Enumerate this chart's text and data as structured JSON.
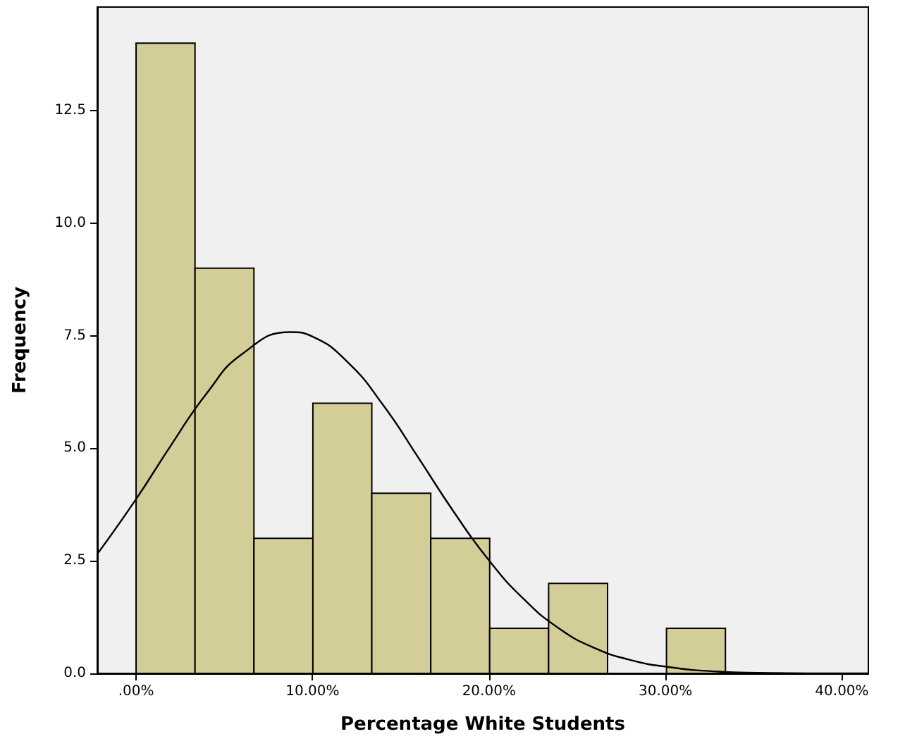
{
  "chart_data": {
    "type": "histogram",
    "xlabel": "Percentage White Students",
    "ylabel": "Frequency",
    "xlim": [
      -2.2,
      41.5
    ],
    "ylim": [
      0,
      14.8
    ],
    "xticks": [
      {
        "value": 0,
        "label": ".00%"
      },
      {
        "value": 10,
        "label": "10.00%"
      },
      {
        "value": 20,
        "label": "20.00%"
      },
      {
        "value": 30,
        "label": "30.00%"
      },
      {
        "value": 40,
        "label": "40.00%"
      }
    ],
    "yticks": [
      {
        "value": 0,
        "label": "0.0"
      },
      {
        "value": 2.5,
        "label": "2.5"
      },
      {
        "value": 5,
        "label": "5.0"
      },
      {
        "value": 7.5,
        "label": "7.5"
      },
      {
        "value": 10,
        "label": "10.0"
      },
      {
        "value": 12.5,
        "label": "12.5"
      }
    ],
    "grid": false,
    "series": [
      {
        "color": "#d3cd97",
        "bins": [
          0,
          3.34,
          6.68,
          10.02,
          13.36,
          16.7,
          20.04,
          23.38,
          26.72,
          30.06,
          33.4
        ],
        "values": [
          14,
          9,
          3,
          6,
          4,
          3,
          1,
          2,
          0,
          1
        ]
      },
      {
        "type": "line",
        "color": "#000000",
        "marker": "none",
        "line_style": "solid",
        "x": [
          -2.2,
          0,
          2,
          4,
          6,
          8.76,
          10,
          12,
          14,
          16,
          18,
          20,
          22,
          24,
          26,
          28,
          30,
          33,
          36,
          40,
          41.5
        ],
        "values": [
          2.65,
          3.87,
          5.08,
          6.22,
          7.09,
          7.58,
          7.48,
          6.91,
          5.96,
          4.79,
          3.59,
          2.51,
          1.64,
          0.99,
          0.56,
          0.3,
          0.15,
          0.04,
          0.01,
          0,
          0
        ]
      }
    ]
  }
}
